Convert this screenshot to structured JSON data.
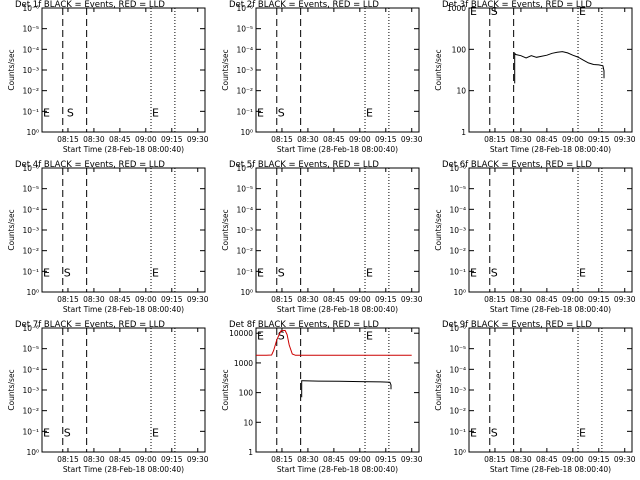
{
  "chart_data": [
    {
      "type": "line",
      "title": "Det 1f BLACK = Events, RED = LLD",
      "xlabel": "Start Time (28-Feb-18 08:00:40)",
      "ylabel": "Counts/sec",
      "xlim": [
        8.0,
        9.57
      ],
      "x_tick_values": [
        8.25,
        8.5,
        8.75,
        9.0,
        9.25,
        9.5
      ],
      "x_tick_labels": [
        "08:15",
        "08:30",
        "08:45",
        "09:00",
        "09:15",
        "09:30"
      ],
      "y_scale": "log",
      "ylim": [
        1,
        1e-06
      ],
      "y_tick_values": [
        1,
        0.1,
        0.01,
        0.001,
        0.0001,
        1e-05,
        1e-06
      ],
      "y_tick_labels": [
        "10⁰",
        "10⁻¹",
        "10⁻²",
        "10⁻³",
        "10⁻⁴",
        "10⁻⁵",
        "10⁻⁶"
      ],
      "vlines": [
        {
          "x": 8.2,
          "style": "dashed"
        },
        {
          "x": 8.43,
          "style": "dashed"
        },
        {
          "x": 9.05,
          "style": "dotted"
        },
        {
          "x": 9.28,
          "style": "dotted"
        }
      ],
      "markers": [
        {
          "text": "E",
          "x": 8.0,
          "y": 0.1
        },
        {
          "text": "S",
          "x": 8.23,
          "y": 0.1
        },
        {
          "text": "E",
          "x": 9.05,
          "y": 0.1
        }
      ],
      "series": []
    },
    {
      "type": "line",
      "title": "Det 2f BLACK = Events, RED = LLD",
      "xlabel": "Start Time (28-Feb-18 08:00:40)",
      "ylabel": "Counts/sec",
      "xlim": [
        8.0,
        9.57
      ],
      "x_tick_values": [
        8.25,
        8.5,
        8.75,
        9.0,
        9.25,
        9.5
      ],
      "x_tick_labels": [
        "08:15",
        "08:30",
        "08:45",
        "09:00",
        "09:15",
        "09:30"
      ],
      "y_scale": "log",
      "ylim": [
        1,
        1e-06
      ],
      "y_tick_values": [
        1,
        0.1,
        0.01,
        0.001,
        0.0001,
        1e-05,
        1e-06
      ],
      "y_tick_labels": [
        "10⁰",
        "10⁻¹",
        "10⁻²",
        "10⁻³",
        "10⁻⁴",
        "10⁻⁵",
        "10⁻⁶"
      ],
      "vlines": [
        {
          "x": 8.2,
          "style": "dashed"
        },
        {
          "x": 8.43,
          "style": "dashed"
        },
        {
          "x": 9.05,
          "style": "dotted"
        },
        {
          "x": 9.28,
          "style": "dotted"
        }
      ],
      "markers": [
        {
          "text": "E",
          "x": 8.0,
          "y": 0.1
        },
        {
          "text": "S",
          "x": 8.2,
          "y": 0.1
        },
        {
          "text": "E",
          "x": 9.05,
          "y": 0.1
        }
      ],
      "series": []
    },
    {
      "type": "line",
      "title": "Det 3f BLACK = Events, RED = LLD",
      "xlabel": "Start Time (28-Feb-18 08:00:40)",
      "ylabel": "Counts/sec",
      "xlim": [
        8.0,
        9.57
      ],
      "x_tick_values": [
        8.25,
        8.5,
        8.75,
        9.0,
        9.25,
        9.5
      ],
      "x_tick_labels": [
        "08:15",
        "08:30",
        "08:45",
        "09:00",
        "09:15",
        "09:30"
      ],
      "y_scale": "log",
      "ylim": [
        1,
        1000
      ],
      "y_tick_values": [
        1,
        10,
        100,
        1000
      ],
      "y_tick_labels": [
        "1",
        "10",
        "100",
        "1000"
      ],
      "vlines": [
        {
          "x": 8.2,
          "style": "dashed"
        },
        {
          "x": 8.43,
          "style": "dashed"
        },
        {
          "x": 9.05,
          "style": "dotted"
        },
        {
          "x": 9.28,
          "style": "dotted"
        }
      ],
      "markers": [
        {
          "text": "E",
          "x": 8.0,
          "y": 900
        },
        {
          "text": "S",
          "x": 8.2,
          "y": 900
        },
        {
          "text": "E",
          "x": 9.05,
          "y": 900
        }
      ],
      "series": [
        {
          "color": "#000000",
          "x": [
            8.44,
            8.44,
            8.45,
            8.5,
            8.55,
            8.6,
            8.65,
            8.7,
            8.75,
            8.8,
            8.85,
            8.9,
            8.95,
            9.0,
            9.05,
            9.1,
            9.15,
            9.2,
            9.25,
            9.29,
            9.3,
            9.3
          ],
          "y": [
            15,
            80,
            75,
            70,
            62,
            70,
            64,
            68,
            72,
            80,
            85,
            88,
            82,
            72,
            65,
            55,
            47,
            43,
            42,
            40,
            30,
            20
          ]
        }
      ]
    },
    {
      "type": "line",
      "title": "Det 4f BLACK = Events, RED = LLD",
      "xlabel": "Start Time (28-Feb-18 08:00:40)",
      "ylabel": "Counts/sec",
      "xlim": [
        8.0,
        9.57
      ],
      "x_tick_values": [
        8.25,
        8.5,
        8.75,
        9.0,
        9.25,
        9.5
      ],
      "x_tick_labels": [
        "08:15",
        "08:30",
        "08:45",
        "09:00",
        "09:15",
        "09:30"
      ],
      "y_scale": "log",
      "ylim": [
        1,
        1e-06
      ],
      "y_tick_values": [
        1,
        0.1,
        0.01,
        0.001,
        0.0001,
        1e-05,
        1e-06
      ],
      "y_tick_labels": [
        "10⁰",
        "10⁻¹",
        "10⁻²",
        "10⁻³",
        "10⁻⁴",
        "10⁻⁵",
        "10⁻⁶"
      ],
      "vlines": [
        {
          "x": 8.2,
          "style": "dashed"
        },
        {
          "x": 8.43,
          "style": "dashed"
        },
        {
          "x": 9.05,
          "style": "dotted"
        },
        {
          "x": 9.28,
          "style": "dotted"
        }
      ],
      "markers": [
        {
          "text": "E",
          "x": 8.0,
          "y": 0.1
        },
        {
          "text": "S",
          "x": 8.2,
          "y": 0.1
        },
        {
          "text": "E",
          "x": 9.05,
          "y": 0.1
        }
      ],
      "series": []
    },
    {
      "type": "line",
      "title": "Det 5f BLACK = Events, RED = LLD",
      "xlabel": "Start Time (28-Feb-18 08:00:40)",
      "ylabel": "Counts/sec",
      "xlim": [
        8.0,
        9.57
      ],
      "x_tick_values": [
        8.25,
        8.5,
        8.75,
        9.0,
        9.25,
        9.5
      ],
      "x_tick_labels": [
        "08:15",
        "08:30",
        "08:45",
        "09:00",
        "09:15",
        "09:30"
      ],
      "y_scale": "log",
      "ylim": [
        1,
        1e-06
      ],
      "y_tick_values": [
        1,
        0.1,
        0.01,
        0.001,
        0.0001,
        1e-05,
        1e-06
      ],
      "y_tick_labels": [
        "10⁰",
        "10⁻¹",
        "10⁻²",
        "10⁻³",
        "10⁻⁴",
        "10⁻⁵",
        "10⁻⁶"
      ],
      "vlines": [
        {
          "x": 8.2,
          "style": "dashed"
        },
        {
          "x": 8.43,
          "style": "dashed"
        },
        {
          "x": 9.05,
          "style": "dotted"
        },
        {
          "x": 9.28,
          "style": "dotted"
        }
      ],
      "markers": [
        {
          "text": "E",
          "x": 8.0,
          "y": 0.1
        },
        {
          "text": "S",
          "x": 8.2,
          "y": 0.1
        },
        {
          "text": "E",
          "x": 9.05,
          "y": 0.1
        }
      ],
      "series": []
    },
    {
      "type": "line",
      "title": "Det 6f BLACK = Events, RED = LLD",
      "xlabel": "Start Time (28-Feb-18 08:00:40)",
      "ylabel": "Counts/sec",
      "xlim": [
        8.0,
        9.57
      ],
      "x_tick_values": [
        8.25,
        8.5,
        8.75,
        9.0,
        9.25,
        9.5
      ],
      "x_tick_labels": [
        "08:15",
        "08:30",
        "08:45",
        "09:00",
        "09:15",
        "09:30"
      ],
      "y_scale": "log",
      "ylim": [
        1,
        1e-06
      ],
      "y_tick_values": [
        1,
        0.1,
        0.01,
        0.001,
        0.0001,
        1e-05,
        1e-06
      ],
      "y_tick_labels": [
        "10⁰",
        "10⁻¹",
        "10⁻²",
        "10⁻³",
        "10⁻⁴",
        "10⁻⁵",
        "10⁻⁶"
      ],
      "vlines": [
        {
          "x": 8.2,
          "style": "dashed"
        },
        {
          "x": 8.43,
          "style": "dashed"
        },
        {
          "x": 9.05,
          "style": "dotted"
        },
        {
          "x": 9.28,
          "style": "dotted"
        }
      ],
      "markers": [
        {
          "text": "E",
          "x": 8.0,
          "y": 0.1
        },
        {
          "text": "S",
          "x": 8.2,
          "y": 0.1
        },
        {
          "text": "E",
          "x": 9.05,
          "y": 0.1
        }
      ],
      "series": []
    },
    {
      "type": "line",
      "title": "Det 7f BLACK = Events, RED = LLD",
      "xlabel": "Start Time (28-Feb-18 08:00:40)",
      "ylabel": "Counts/sec",
      "xlim": [
        8.0,
        9.57
      ],
      "x_tick_values": [
        8.25,
        8.5,
        8.75,
        9.0,
        9.25,
        9.5
      ],
      "x_tick_labels": [
        "08:15",
        "08:30",
        "08:45",
        "09:00",
        "09:15",
        "09:30"
      ],
      "y_scale": "log",
      "ylim": [
        1,
        1e-06
      ],
      "y_tick_values": [
        1,
        0.1,
        0.01,
        0.001,
        0.0001,
        1e-05,
        1e-06
      ],
      "y_tick_labels": [
        "10⁰",
        "10⁻¹",
        "10⁻²",
        "10⁻³",
        "10⁻⁴",
        "10⁻⁵",
        "10⁻⁶"
      ],
      "vlines": [
        {
          "x": 8.2,
          "style": "dashed"
        },
        {
          "x": 8.43,
          "style": "dashed"
        },
        {
          "x": 9.05,
          "style": "dotted"
        },
        {
          "x": 9.28,
          "style": "dotted"
        }
      ],
      "markers": [
        {
          "text": "E",
          "x": 8.0,
          "y": 0.1
        },
        {
          "text": "S",
          "x": 8.2,
          "y": 0.1
        },
        {
          "text": "E",
          "x": 9.05,
          "y": 0.1
        }
      ],
      "series": []
    },
    {
      "type": "line",
      "title": "Det 8f BLACK = Events, RED = LLD",
      "xlabel": "Start Time (28-Feb-18 08:00:40)",
      "ylabel": "Counts/sec",
      "xlim": [
        8.0,
        9.57
      ],
      "x_tick_values": [
        8.25,
        8.5,
        8.75,
        9.0,
        9.25,
        9.5
      ],
      "x_tick_labels": [
        "08:15",
        "08:30",
        "08:45",
        "09:00",
        "09:15",
        "09:30"
      ],
      "y_scale": "log",
      "ylim": [
        1,
        15000
      ],
      "y_tick_values": [
        1,
        10,
        100,
        1000,
        10000
      ],
      "y_tick_labels": [
        "1",
        "10",
        "100",
        "1000",
        "10000"
      ],
      "vlines": [
        {
          "x": 8.2,
          "style": "dashed"
        },
        {
          "x": 8.43,
          "style": "dashed"
        },
        {
          "x": 9.05,
          "style": "dotted"
        },
        {
          "x": 9.28,
          "style": "dotted"
        }
      ],
      "markers": [
        {
          "text": "E",
          "x": 8.0,
          "y": 9000
        },
        {
          "text": "S",
          "x": 8.2,
          "y": 9000
        },
        {
          "text": "E",
          "x": 9.05,
          "y": 9000
        }
      ],
      "series": [
        {
          "color": "#cc0000",
          "x": [
            8.0,
            8.1,
            8.15,
            8.17,
            8.2,
            8.24,
            8.28,
            8.3,
            8.32,
            8.35,
            8.38,
            8.5,
            9.0,
            9.5
          ],
          "y": [
            1800,
            1800,
            1850,
            2600,
            6000,
            12000,
            12500,
            9000,
            4000,
            2000,
            1800,
            1800,
            1800,
            1800
          ]
        },
        {
          "color": "#000000",
          "x": [
            8.44,
            8.44,
            8.45,
            8.6,
            8.8,
            9.0,
            9.2,
            9.29,
            9.3,
            9.3
          ],
          "y": [
            70,
            250,
            250,
            245,
            240,
            235,
            230,
            225,
            180,
            130
          ]
        }
      ]
    },
    {
      "type": "line",
      "title": "Det 9f BLACK = Events, RED = LLD",
      "xlabel": "Start Time (28-Feb-18 08:00:40)",
      "ylabel": "Counts/sec",
      "xlim": [
        8.0,
        9.57
      ],
      "x_tick_values": [
        8.25,
        8.5,
        8.75,
        9.0,
        9.25,
        9.5
      ],
      "x_tick_labels": [
        "08:15",
        "08:30",
        "08:45",
        "09:00",
        "09:15",
        "09:30"
      ],
      "y_scale": "log",
      "ylim": [
        1,
        1e-06
      ],
      "y_tick_values": [
        1,
        0.1,
        0.01,
        0.001,
        0.0001,
        1e-05,
        1e-06
      ],
      "y_tick_labels": [
        "10⁰",
        "10⁻¹",
        "10⁻²",
        "10⁻³",
        "10⁻⁴",
        "10⁻⁵",
        "10⁻⁶"
      ],
      "vlines": [
        {
          "x": 8.2,
          "style": "dashed"
        },
        {
          "x": 8.43,
          "style": "dashed"
        },
        {
          "x": 9.05,
          "style": "dotted"
        },
        {
          "x": 9.28,
          "style": "dotted"
        }
      ],
      "markers": [
        {
          "text": "E",
          "x": 8.0,
          "y": 0.1
        },
        {
          "text": "S",
          "x": 8.2,
          "y": 0.1
        },
        {
          "text": "E",
          "x": 9.05,
          "y": 0.1
        }
      ],
      "series": []
    }
  ]
}
